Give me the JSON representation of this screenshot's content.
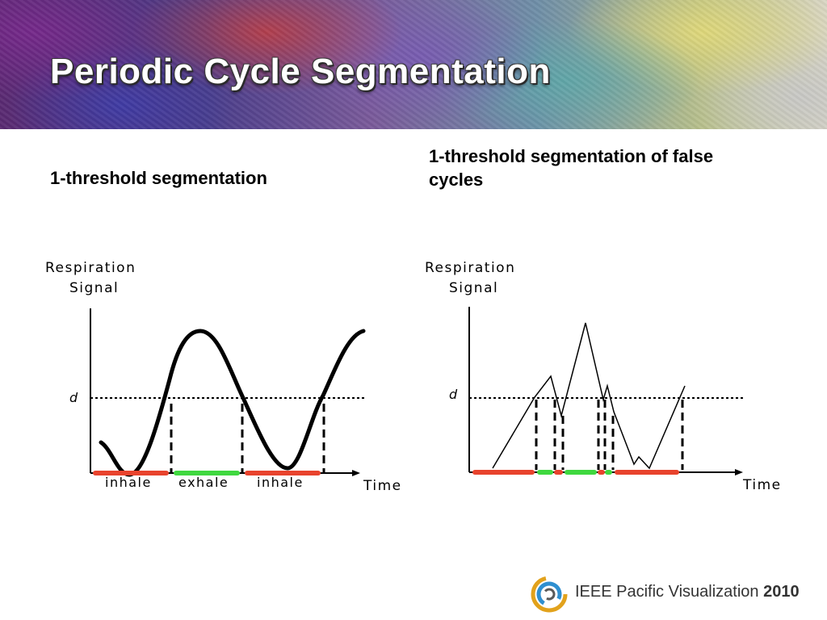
{
  "slide": {
    "title": "Periodic Cycle Segmentation",
    "left_heading": "1-threshold segmentation",
    "right_heading": "1-threshold segmentation of false cycles"
  },
  "diagram_left": {
    "y_label_line1": "Respiration",
    "y_label_line2": "Signal",
    "x_label": "Time",
    "threshold_label": "d",
    "phase_labels": [
      "inhale",
      "exhale",
      "inhale"
    ]
  },
  "diagram_right": {
    "y_label_line1": "Respiration",
    "y_label_line2": "Signal",
    "x_label": "Time",
    "threshold_label": "d"
  },
  "colors": {
    "inhale": "#e8432d",
    "exhale": "#3fd83f",
    "curve": "#000000"
  },
  "footer": {
    "conference": "IEEE Pacific Visualization",
    "year": "2010"
  },
  "icons": {
    "logo": "conference-swirl-logo"
  }
}
